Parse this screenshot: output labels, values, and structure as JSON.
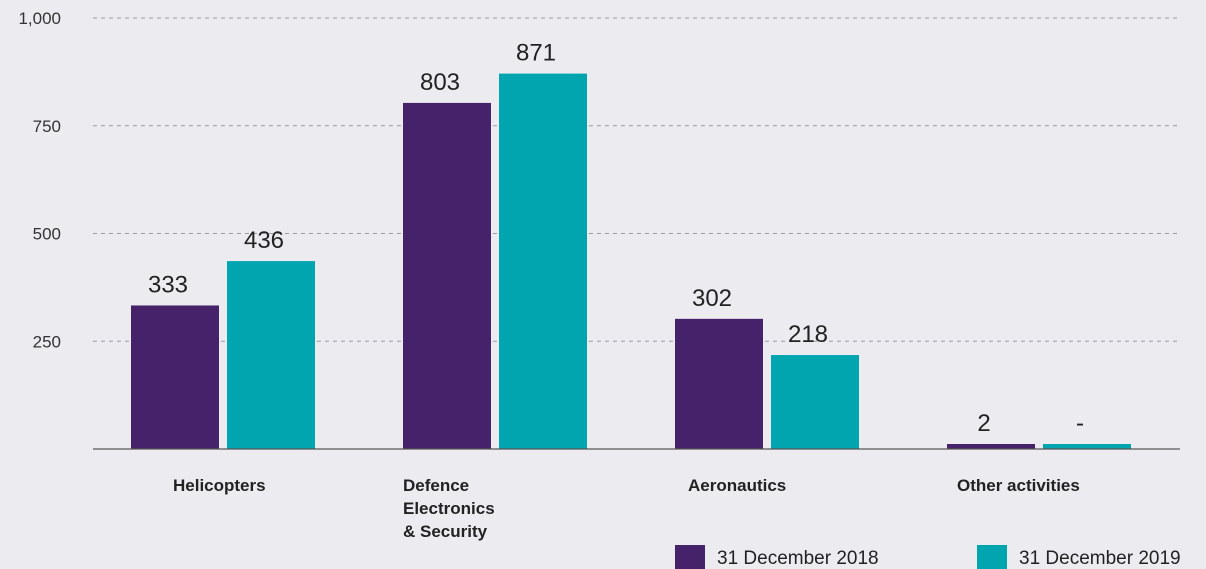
{
  "chart_data": {
    "type": "bar",
    "categories": [
      [
        "Helicopters"
      ],
      [
        "Defence",
        "Electronics",
        "& Security"
      ],
      [
        "Aeronautics"
      ],
      [
        "Other activities"
      ]
    ],
    "series": [
      {
        "name": "31 December 2018",
        "color": "#46226a",
        "values": [
          333,
          803,
          302,
          2
        ],
        "labels": [
          "333",
          "803",
          "302",
          "2"
        ]
      },
      {
        "name": "31 December 2019",
        "color": "#00a5b0",
        "values": [
          436,
          871,
          218,
          0
        ],
        "labels": [
          "436",
          "871",
          "218",
          "-"
        ]
      }
    ],
    "yticks": [
      250,
      500,
      750,
      1000
    ],
    "ytick_labels": [
      "250",
      "500",
      "750",
      "1,000"
    ],
    "ylim": [
      0,
      1000
    ],
    "grid": true,
    "legend": "bottom-right"
  }
}
